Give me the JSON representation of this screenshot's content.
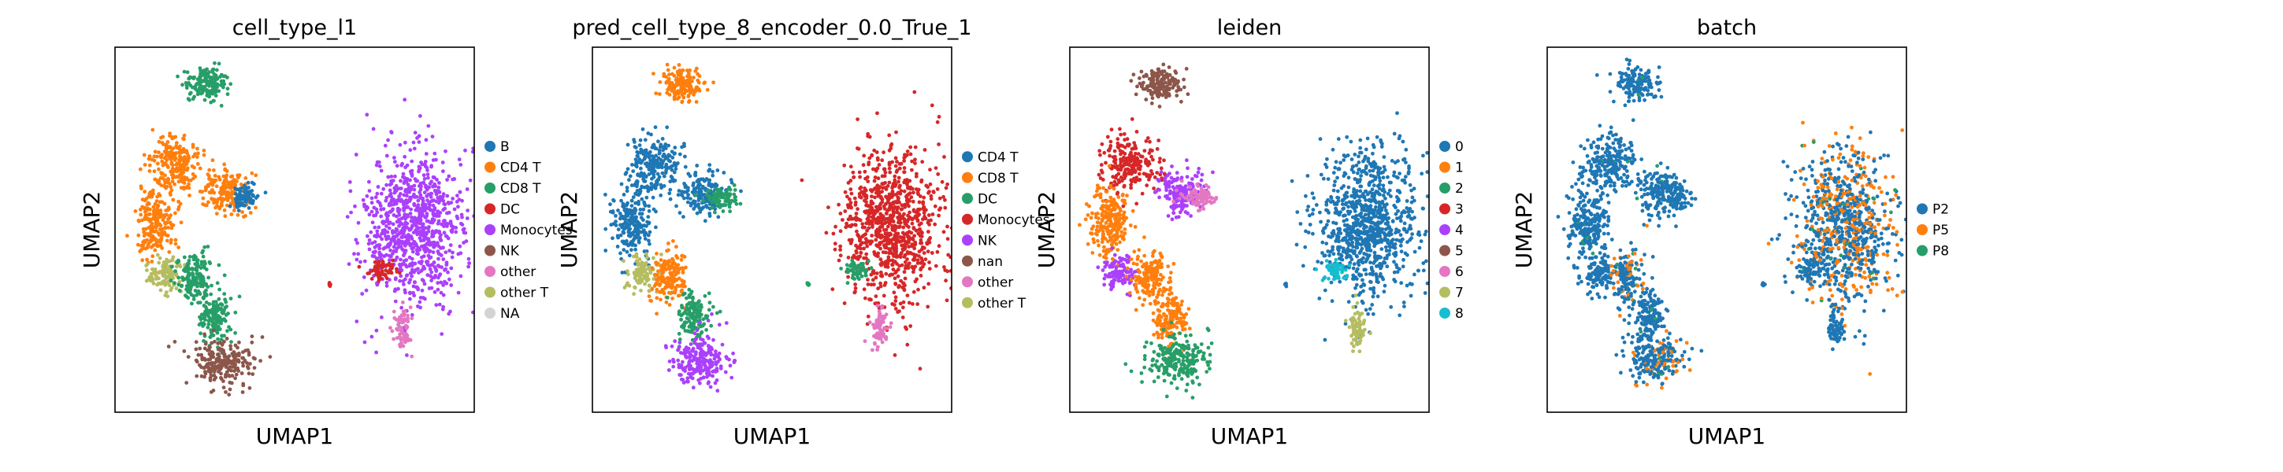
{
  "chart_data": [
    {
      "type": "scatter",
      "title": "cell_type_l1",
      "xlabel": "UMAP1",
      "ylabel": "UMAP2",
      "grid": false,
      "legend_position": "right",
      "legend": [
        {
          "label": "B",
          "color": "#1f77b4"
        },
        {
          "label": "CD4 T",
          "color": "#ff7f0e"
        },
        {
          "label": "CD8 T",
          "color": "#279e68"
        },
        {
          "label": "DC",
          "color": "#d62728"
        },
        {
          "label": "Monocytes",
          "color": "#aa40fc"
        },
        {
          "label": "NK",
          "color": "#8c564b"
        },
        {
          "label": "other",
          "color": "#e377c2"
        },
        {
          "label": "other T",
          "color": "#b5bd61"
        },
        {
          "label": "NA",
          "color": "#d3d3d3"
        }
      ],
      "clusters": [
        "green",
        "orange",
        "orange",
        "orange",
        "olive",
        "green",
        "green",
        "brown",
        "blue",
        "purple",
        "red",
        "pink",
        "red"
      ]
    },
    {
      "type": "scatter",
      "title": "pred_cell_type_8_encoder_0.0_True_1",
      "xlabel": "UMAP1",
      "ylabel": "UMAP2",
      "grid": false,
      "legend_position": "right",
      "legend": [
        {
          "label": "CD4 T",
          "color": "#1f77b4"
        },
        {
          "label": "CD8 T",
          "color": "#ff7f0e"
        },
        {
          "label": "DC",
          "color": "#279e68"
        },
        {
          "label": "Monocytes",
          "color": "#d62728"
        },
        {
          "label": "NK",
          "color": "#aa40fc"
        },
        {
          "label": "nan",
          "color": "#8c564b"
        },
        {
          "label": "other",
          "color": "#e377c2"
        },
        {
          "label": "other T",
          "color": "#b5bd61"
        }
      ],
      "clusters": [
        "orange",
        "blue",
        "blue",
        "blue",
        "olive",
        "orange",
        "green",
        "purple",
        "green",
        "red",
        "green",
        "pink",
        "green"
      ]
    },
    {
      "type": "scatter",
      "title": "leiden",
      "xlabel": "UMAP1",
      "ylabel": "UMAP2",
      "grid": false,
      "legend_position": "right",
      "legend": [
        {
          "label": "0",
          "color": "#1f77b4"
        },
        {
          "label": "1",
          "color": "#ff7f0e"
        },
        {
          "label": "2",
          "color": "#279e68"
        },
        {
          "label": "3",
          "color": "#d62728"
        },
        {
          "label": "4",
          "color": "#aa40fc"
        },
        {
          "label": "5",
          "color": "#8c564b"
        },
        {
          "label": "6",
          "color": "#e377c2"
        },
        {
          "label": "7",
          "color": "#b5bd61"
        },
        {
          "label": "8",
          "color": "#17becf"
        }
      ],
      "clusters": [
        "brown",
        "red",
        "purple",
        "orange",
        "purple",
        "orange",
        "orange",
        "green",
        "pink",
        "blue",
        "cyan",
        "olive",
        "blue"
      ]
    },
    {
      "type": "scatter",
      "title": "batch",
      "xlabel": "UMAP1",
      "ylabel": "UMAP2",
      "grid": false,
      "legend_position": "right",
      "legend": [
        {
          "label": "P2",
          "color": "#1f77b4"
        },
        {
          "label": "P5",
          "color": "#ff7f0e"
        },
        {
          "label": "P8",
          "color": "#279e68"
        }
      ],
      "clusters": [
        "blue",
        "blue",
        "blue",
        "blue",
        "blue",
        "blue",
        "blue",
        "blue",
        "blue",
        "blue",
        "blue",
        "blue",
        "blue"
      ]
    }
  ]
}
